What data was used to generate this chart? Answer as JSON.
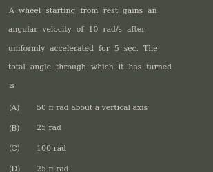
{
  "background_color": "#484d44",
  "text_color": "#ccc8bc",
  "question_lines": [
    "A  wheel  starting  from  rest  gains  an",
    "angular  velocity  of  10  rad/s  after",
    "uniformly  accelerated  for  5  sec.  The",
    "total  angle  through  which  it  has  turned",
    "is"
  ],
  "options": [
    [
      "(A)",
      "50 π rad about a vertical axis"
    ],
    [
      "(B)",
      "25 rad"
    ],
    [
      "(C)",
      "100 rad"
    ],
    [
      "(D)",
      "25 π rad"
    ]
  ],
  "question_fontsize": 7.8,
  "option_fontsize": 7.8,
  "font_family": "DejaVu Serif",
  "fig_width": 3.09,
  "fig_height": 2.51,
  "dpi": 100
}
